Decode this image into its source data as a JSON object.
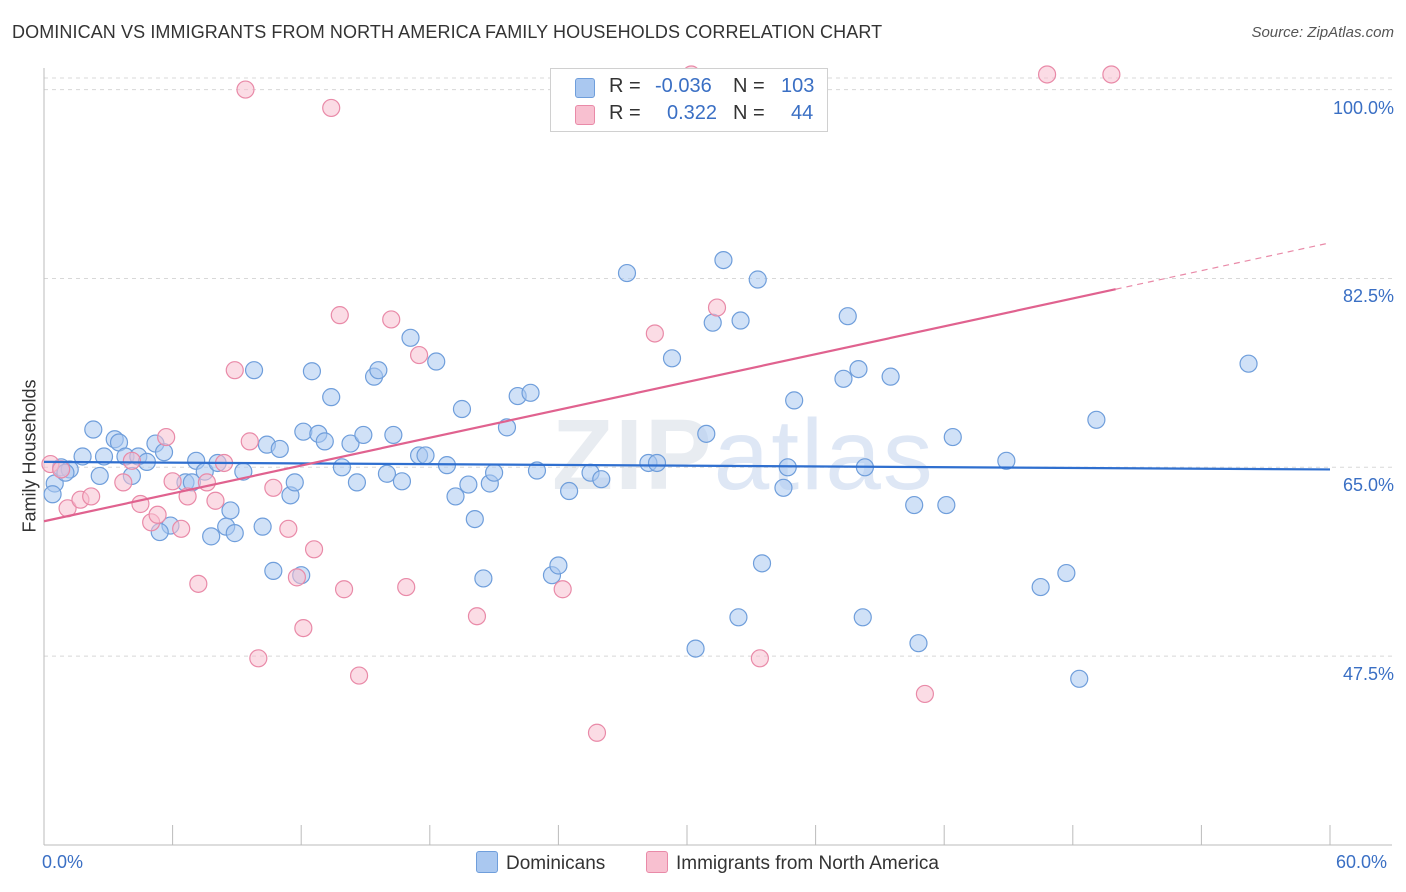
{
  "title": "DOMINICAN VS IMMIGRANTS FROM NORTH AMERICA FAMILY HOUSEHOLDS CORRELATION CHART",
  "source": "Source: ZipAtlas.com",
  "watermark": {
    "bold": "ZIP",
    "light": "atlas"
  },
  "legend": {
    "r_label": "R =",
    "n_label": "N =",
    "rows": [
      {
        "r": "-0.036",
        "n": "103",
        "color": "#aac8f0",
        "border": "#6f9edb"
      },
      {
        "r": "0.322",
        "n": "44",
        "color": "#f8c0d0",
        "border": "#e98aa8"
      }
    ]
  },
  "bottom_legend": [
    {
      "label": "Dominicans",
      "color": "#aac8f0",
      "border": "#6f9edb"
    },
    {
      "label": "Immigrants from North America",
      "color": "#f8c0d0",
      "border": "#e98aa8"
    }
  ],
  "chart_data": {
    "type": "scatter",
    "title": "DOMINICAN VS IMMIGRANTS FROM NORTH AMERICA FAMILY HOUSEHOLDS CORRELATION CHART",
    "xlabel": "",
    "ylabel": "Family Households",
    "xlim": [
      0,
      60
    ],
    "ylim": [
      30,
      102
    ],
    "x_tick_labels": [
      "0.0%",
      "60.0%"
    ],
    "y_ticks": [
      {
        "value": 47.5,
        "label": "47.5%"
      },
      {
        "value": 65.0,
        "label": "65.0%"
      },
      {
        "value": 82.5,
        "label": "82.5%"
      },
      {
        "value": 100.0,
        "label": "100.0%"
      }
    ],
    "grid": "horizontal dashed",
    "legend_position": "top-center",
    "series": [
      {
        "name": "Dominicans",
        "color": "#6f9edb",
        "fill": "#aac8f0",
        "trend": {
          "x": [
            0,
            60
          ],
          "y": [
            65.5,
            64.8
          ]
        },
        "points": [
          [
            0.5,
            63.5
          ],
          [
            0.8,
            65.0
          ],
          [
            1.2,
            64.8
          ],
          [
            1.8,
            66.0
          ],
          [
            2.3,
            68.5
          ],
          [
            2.6,
            64.2
          ],
          [
            2.8,
            66.0
          ],
          [
            3.3,
            67.6
          ],
          [
            3.5,
            67.3
          ],
          [
            3.8,
            66.0
          ],
          [
            4.1,
            64.2
          ],
          [
            4.4,
            66.0
          ],
          [
            4.8,
            65.5
          ],
          [
            5.2,
            67.2
          ],
          [
            5.6,
            66.4
          ],
          [
            5.9,
            59.6
          ],
          [
            6.6,
            63.6
          ],
          [
            6.9,
            63.6
          ],
          [
            7.1,
            65.6
          ],
          [
            7.5,
            64.6
          ],
          [
            7.8,
            58.6
          ],
          [
            8.1,
            65.4
          ],
          [
            8.5,
            59.5
          ],
          [
            8.9,
            58.9
          ],
          [
            9.3,
            64.6
          ],
          [
            9.8,
            74.0
          ],
          [
            10.2,
            59.5
          ],
          [
            10.4,
            67.1
          ],
          [
            10.7,
            55.4
          ],
          [
            11.0,
            66.7
          ],
          [
            11.5,
            62.4
          ],
          [
            11.7,
            63.6
          ],
          [
            12.1,
            68.3
          ],
          [
            12.5,
            73.9
          ],
          [
            12.8,
            68.1
          ],
          [
            13.1,
            67.4
          ],
          [
            13.4,
            71.5
          ],
          [
            13.9,
            65.0
          ],
          [
            14.3,
            67.2
          ],
          [
            14.6,
            63.6
          ],
          [
            14.9,
            68.0
          ],
          [
            15.4,
            73.4
          ],
          [
            15.6,
            74.0
          ],
          [
            16.0,
            64.4
          ],
          [
            16.3,
            68.0
          ],
          [
            16.7,
            63.7
          ],
          [
            17.1,
            77.0
          ],
          [
            17.5,
            66.1
          ],
          [
            17.8,
            66.1
          ],
          [
            18.3,
            74.8
          ],
          [
            18.8,
            65.2
          ],
          [
            19.2,
            62.3
          ],
          [
            19.5,
            70.4
          ],
          [
            20.1,
            60.2
          ],
          [
            20.5,
            54.7
          ],
          [
            20.8,
            63.5
          ],
          [
            21.0,
            64.5
          ],
          [
            21.6,
            68.7
          ],
          [
            22.1,
            71.6
          ],
          [
            22.7,
            71.9
          ],
          [
            23.0,
            64.7
          ],
          [
            23.7,
            55.0
          ],
          [
            24.0,
            55.9
          ],
          [
            25.5,
            64.5
          ],
          [
            26.0,
            63.9
          ],
          [
            27.2,
            83.0
          ],
          [
            28.2,
            65.4
          ],
          [
            28.6,
            65.4
          ],
          [
            29.3,
            75.1
          ],
          [
            30.4,
            48.2
          ],
          [
            30.9,
            68.1
          ],
          [
            31.2,
            78.4
          ],
          [
            31.7,
            84.2
          ],
          [
            32.4,
            51.1
          ],
          [
            32.5,
            78.6
          ],
          [
            33.3,
            82.4
          ],
          [
            33.5,
            56.1
          ],
          [
            34.5,
            63.1
          ],
          [
            34.7,
            65.0
          ],
          [
            35.0,
            71.2
          ],
          [
            37.3,
            73.2
          ],
          [
            37.5,
            79.0
          ],
          [
            38.0,
            74.1
          ],
          [
            38.2,
            51.1
          ],
          [
            38.3,
            65.0
          ],
          [
            39.5,
            73.4
          ],
          [
            40.6,
            61.5
          ],
          [
            40.8,
            48.7
          ],
          [
            42.1,
            61.5
          ],
          [
            42.4,
            67.8
          ],
          [
            44.9,
            65.6
          ],
          [
            46.5,
            53.9
          ],
          [
            47.7,
            55.2
          ],
          [
            48.3,
            45.4
          ],
          [
            49.1,
            69.4
          ],
          [
            56.2,
            74.6
          ],
          [
            0.4,
            62.5
          ],
          [
            1.0,
            64.5
          ],
          [
            5.4,
            59.0
          ],
          [
            8.7,
            61.0
          ],
          [
            12.0,
            55.0
          ],
          [
            19.8,
            63.4
          ],
          [
            24.5,
            62.8
          ]
        ]
      },
      {
        "name": "Immigrants from North America",
        "color": "#e98aa8",
        "fill": "#f8c0d0",
        "trend": {
          "x": [
            0,
            50
          ],
          "y": [
            60.0,
            81.5
          ]
        },
        "trend_extension": {
          "x": [
            50,
            60
          ],
          "y": [
            81.5,
            85.8
          ]
        },
        "points": [
          [
            0.3,
            65.3
          ],
          [
            1.1,
            61.2
          ],
          [
            1.7,
            62.0
          ],
          [
            2.2,
            62.3
          ],
          [
            3.7,
            63.6
          ],
          [
            4.1,
            65.6
          ],
          [
            4.5,
            61.6
          ],
          [
            5.0,
            59.9
          ],
          [
            5.3,
            60.6
          ],
          [
            5.7,
            67.8
          ],
          [
            6.0,
            63.7
          ],
          [
            6.4,
            59.3
          ],
          [
            6.7,
            62.3
          ],
          [
            7.2,
            54.2
          ],
          [
            7.6,
            63.6
          ],
          [
            8.0,
            61.9
          ],
          [
            8.4,
            65.4
          ],
          [
            8.9,
            74.0
          ],
          [
            9.4,
            100.0
          ],
          [
            9.6,
            67.4
          ],
          [
            10.0,
            47.3
          ],
          [
            10.7,
            63.1
          ],
          [
            11.4,
            59.3
          ],
          [
            11.8,
            54.8
          ],
          [
            12.1,
            50.1
          ],
          [
            12.6,
            57.4
          ],
          [
            13.4,
            98.3
          ],
          [
            13.8,
            79.1
          ],
          [
            14.0,
            53.7
          ],
          [
            14.7,
            45.7
          ],
          [
            16.2,
            78.7
          ],
          [
            16.9,
            53.9
          ],
          [
            17.5,
            75.4
          ],
          [
            20.2,
            51.2
          ],
          [
            24.2,
            53.7
          ],
          [
            25.8,
            40.4
          ],
          [
            28.5,
            77.4
          ],
          [
            30.2,
            101.4
          ],
          [
            31.4,
            79.8
          ],
          [
            33.4,
            47.3
          ],
          [
            41.1,
            44.0
          ],
          [
            46.8,
            101.4
          ],
          [
            49.8,
            101.4
          ],
          [
            0.8,
            64.8
          ]
        ]
      }
    ]
  }
}
